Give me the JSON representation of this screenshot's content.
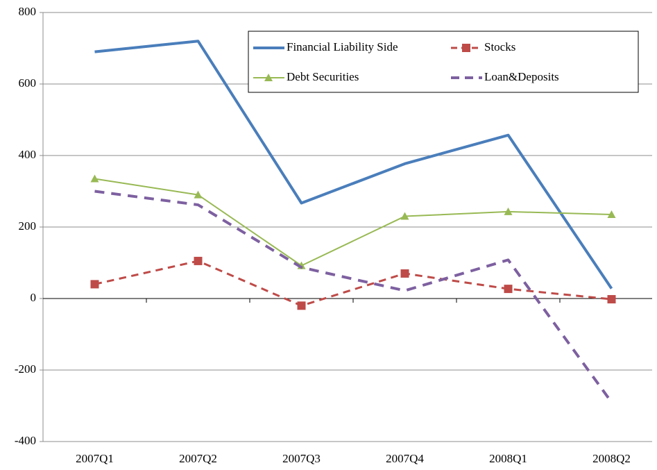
{
  "chart_data": {
    "type": "line",
    "categories": [
      "2007Q1",
      "2007Q2",
      "2007Q3",
      "2007Q4",
      "2008Q1",
      "2008Q2"
    ],
    "series": [
      {
        "name": "Financial Liability Side",
        "color": "#4a7ebb",
        "values": [
          690,
          720,
          267,
          377,
          457,
          28
        ],
        "marker": "none",
        "style": "solid",
        "width": 4
      },
      {
        "name": "Stocks",
        "color": "#be4b48",
        "values": [
          40,
          105,
          -20,
          70,
          27,
          -2
        ],
        "marker": "square",
        "style": "dashed",
        "width": 3
      },
      {
        "name": "Debt Securities",
        "color": "#98b954",
        "values": [
          335,
          290,
          92,
          230,
          243,
          235
        ],
        "marker": "triangle",
        "style": "solid",
        "width": 2
      },
      {
        "name": "Loan&Deposits",
        "color": "#7d60a0",
        "values": [
          300,
          262,
          87,
          22,
          108,
          -290
        ],
        "marker": "none",
        "style": "dashed",
        "width": 4
      }
    ],
    "ylim": [
      -400,
      800
    ],
    "yticks": [
      -400,
      -200,
      0,
      200,
      400,
      600,
      800
    ],
    "grid": true,
    "legend": "upper right"
  }
}
